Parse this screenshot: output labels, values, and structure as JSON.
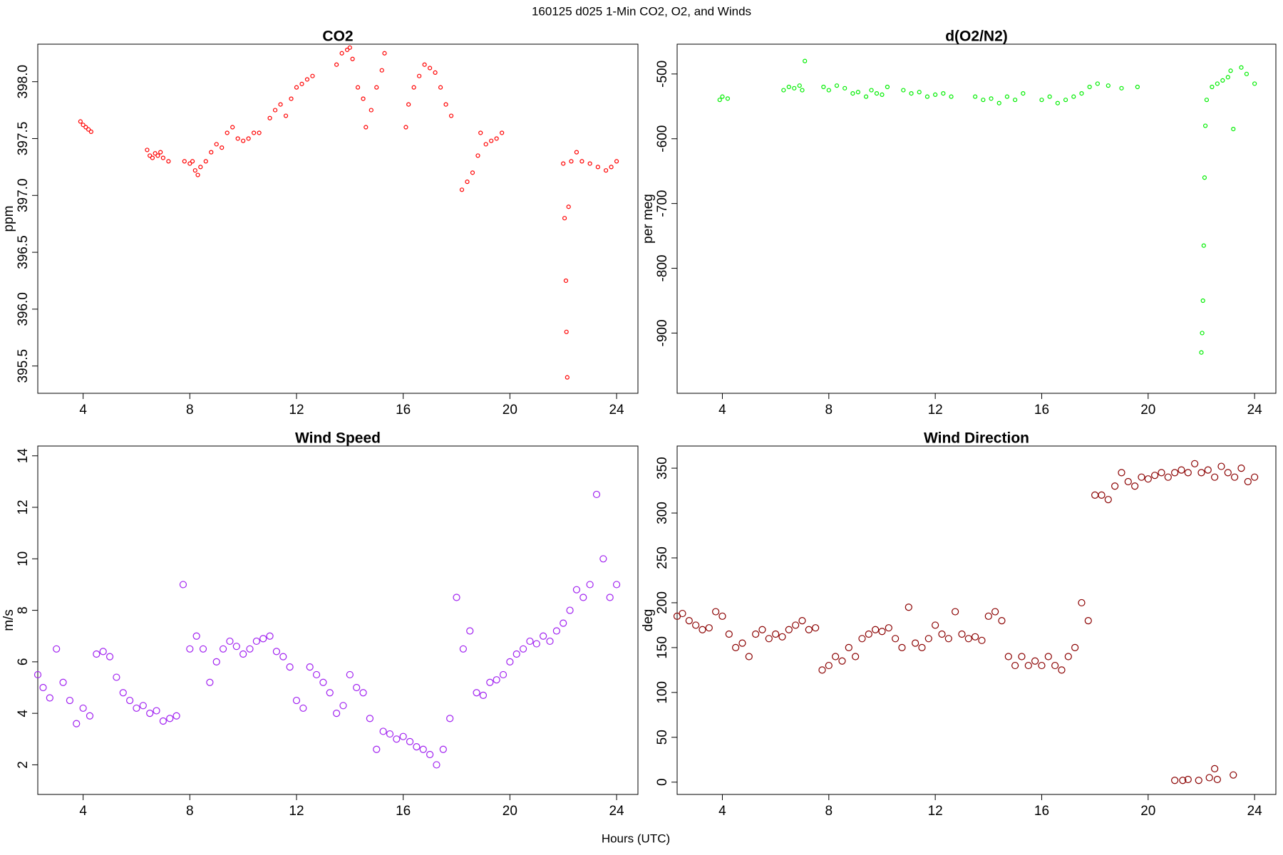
{
  "title": "160125   d025   1-Min CO2, O2, and Winds",
  "xlabel": "Hours (UTC)",
  "chart_data": [
    {
      "type": "scatter",
      "title": "CO2",
      "ylabel": "ppm",
      "color": "#ff0000",
      "xlim": [
        2.3,
        24.8
      ],
      "xticks": [
        4,
        8,
        12,
        16,
        20,
        24
      ],
      "ylim": [
        395.26,
        398.33
      ],
      "yticks": [
        395.5,
        {
          "value": 396,
          "label": "396.0"
        },
        396.5,
        {
          "value": 397,
          "label": "397.0"
        },
        397.5,
        {
          "value": 398,
          "label": "398.0"
        }
      ],
      "x": [
        3.9,
        4.0,
        4.1,
        4.2,
        4.3,
        6.4,
        6.5,
        6.6,
        6.7,
        6.8,
        6.9,
        7.0,
        7.2,
        7.8,
        8.0,
        8.1,
        8.2,
        8.3,
        8.4,
        8.6,
        8.8,
        9.0,
        9.2,
        9.4,
        9.6,
        9.8,
        10.0,
        10.2,
        10.4,
        10.6,
        11.0,
        11.2,
        11.4,
        11.6,
        11.8,
        12.0,
        12.2,
        12.4,
        12.6,
        13.5,
        13.7,
        13.9,
        14.0,
        14.1,
        14.3,
        14.5,
        14.6,
        14.8,
        15.0,
        15.2,
        15.3,
        16.1,
        16.2,
        16.4,
        16.6,
        16.8,
        17.0,
        17.2,
        17.4,
        17.6,
        17.8,
        18.2,
        18.4,
        18.6,
        18.8,
        18.9,
        19.1,
        19.3,
        19.5,
        19.7,
        22.0,
        22.05,
        22.1,
        22.12,
        22.15,
        22.2,
        22.3,
        22.5,
        22.7,
        23.0,
        23.3,
        23.6,
        23.8,
        24.0
      ],
      "values": [
        397.65,
        397.62,
        397.6,
        397.58,
        397.56,
        397.4,
        397.35,
        397.33,
        397.37,
        397.35,
        397.38,
        397.33,
        397.3,
        397.3,
        397.28,
        397.3,
        397.22,
        397.18,
        397.25,
        397.3,
        397.38,
        397.45,
        397.42,
        397.55,
        397.6,
        397.5,
        397.48,
        397.5,
        397.55,
        397.55,
        397.68,
        397.75,
        397.8,
        397.7,
        397.85,
        397.95,
        397.98,
        398.02,
        398.05,
        398.15,
        398.25,
        398.28,
        398.3,
        398.2,
        397.95,
        397.85,
        397.6,
        397.75,
        397.95,
        398.1,
        398.25,
        397.6,
        397.8,
        397.95,
        398.05,
        398.15,
        398.12,
        398.08,
        397.95,
        397.8,
        397.7,
        397.05,
        397.12,
        397.2,
        397.35,
        397.55,
        397.45,
        397.48,
        397.5,
        397.55,
        397.28,
        396.8,
        396.25,
        395.8,
        395.4,
        396.9,
        397.3,
        397.38,
        397.3,
        397.28,
        397.25,
        397.22,
        397.25,
        397.3
      ]
    },
    {
      "type": "scatter",
      "title": "d(O2/N2)",
      "ylabel": "per meg",
      "color": "#00ee00",
      "xlim": [
        2.3,
        24.8
      ],
      "xticks": [
        4,
        8,
        12,
        16,
        20,
        24
      ],
      "ylim": [
        -993,
        -454
      ],
      "yticks": [
        -900,
        -800,
        -700,
        -600,
        -500
      ],
      "x": [
        3.9,
        4.0,
        4.2,
        6.3,
        6.5,
        6.7,
        6.9,
        7.0,
        7.1,
        7.8,
        8.0,
        8.3,
        8.6,
        8.9,
        9.1,
        9.4,
        9.6,
        9.8,
        10.0,
        10.2,
        10.8,
        11.1,
        11.4,
        11.7,
        12.0,
        12.3,
        12.6,
        13.5,
        13.8,
        14.1,
        14.4,
        14.7,
        15.0,
        15.3,
        16.0,
        16.3,
        16.6,
        16.9,
        17.2,
        17.5,
        17.8,
        18.1,
        18.5,
        19.0,
        19.6,
        22.0,
        22.03,
        22.06,
        22.09,
        22.12,
        22.15,
        22.2,
        22.4,
        22.6,
        22.8,
        23.0,
        23.1,
        23.2,
        23.5,
        23.7,
        24.0
      ],
      "values": [
        -540,
        -535,
        -538,
        -525,
        -520,
        -522,
        -518,
        -525,
        -480,
        -520,
        -525,
        -518,
        -522,
        -530,
        -528,
        -535,
        -525,
        -530,
        -532,
        -520,
        -525,
        -530,
        -528,
        -535,
        -532,
        -530,
        -535,
        -535,
        -540,
        -538,
        -545,
        -535,
        -540,
        -530,
        -540,
        -535,
        -545,
        -540,
        -535,
        -530,
        -520,
        -515,
        -518,
        -522,
        -520,
        -930,
        -900,
        -850,
        -765,
        -660,
        -580,
        -540,
        -520,
        -515,
        -510,
        -505,
        -495,
        -585,
        -490,
        -500,
        -515
      ]
    },
    {
      "type": "scatter",
      "title": "Wind Speed",
      "ylabel": "m/s",
      "color": "#a020f0",
      "xlim": [
        2.3,
        24.8
      ],
      "xticks": [
        4,
        8,
        12,
        16,
        20,
        24
      ],
      "ylim": [
        0.85,
        14.38
      ],
      "yticks": [
        2,
        4,
        6,
        8,
        10,
        12,
        14
      ],
      "x": [
        2.3,
        2.5,
        2.75,
        3.0,
        3.25,
        3.5,
        3.75,
        4.0,
        4.25,
        4.5,
        4.75,
        5.0,
        5.25,
        5.5,
        5.75,
        6.0,
        6.25,
        6.5,
        6.75,
        7.0,
        7.25,
        7.5,
        7.75,
        8.0,
        8.25,
        8.5,
        8.75,
        9.0,
        9.25,
        9.5,
        9.75,
        10.0,
        10.25,
        10.5,
        10.75,
        11.0,
        11.25,
        11.5,
        11.75,
        12.0,
        12.25,
        12.5,
        12.75,
        13.0,
        13.25,
        13.5,
        13.75,
        14.0,
        14.25,
        14.5,
        14.75,
        15.0,
        15.25,
        15.5,
        15.75,
        16.0,
        16.25,
        16.5,
        16.75,
        17.0,
        17.25,
        17.5,
        17.75,
        18.0,
        18.25,
        18.5,
        18.75,
        19.0,
        19.25,
        19.5,
        19.75,
        20.0,
        20.25,
        20.5,
        20.75,
        21.0,
        21.25,
        21.5,
        21.75,
        22.0,
        22.25,
        22.5,
        22.75,
        23.0,
        23.25,
        23.5,
        23.75,
        24.0
      ],
      "values": [
        5.5,
        5.0,
        4.6,
        6.5,
        5.2,
        4.5,
        3.6,
        4.2,
        3.9,
        6.3,
        6.4,
        6.2,
        5.4,
        4.8,
        4.5,
        4.2,
        4.3,
        4.0,
        4.1,
        3.7,
        3.8,
        3.9,
        9.0,
        6.5,
        7.0,
        6.5,
        5.2,
        6.0,
        6.5,
        6.8,
        6.6,
        6.3,
        6.5,
        6.8,
        6.9,
        7.0,
        6.4,
        6.2,
        5.8,
        4.5,
        4.2,
        5.8,
        5.5,
        5.2,
        4.8,
        4.0,
        4.3,
        5.5,
        5.0,
        4.8,
        3.8,
        2.6,
        3.3,
        3.2,
        3.0,
        3.1,
        2.9,
        2.7,
        2.6,
        2.4,
        2.0,
        2.6,
        3.8,
        8.5,
        6.5,
        7.2,
        4.8,
        4.7,
        5.2,
        5.3,
        5.5,
        6.0,
        6.3,
        6.5,
        6.8,
        6.7,
        7.0,
        6.8,
        7.2,
        7.5,
        8.0,
        8.8,
        8.5,
        9.0,
        12.5,
        10.0,
        8.5,
        9.0
      ]
    },
    {
      "type": "scatter",
      "title": "Wind Direction",
      "ylabel": "deg",
      "color": "#8b0000",
      "xlim": [
        2.3,
        24.8
      ],
      "xticks": [
        4,
        8,
        12,
        16,
        20,
        24
      ],
      "ylim": [
        -13.7,
        374.7
      ],
      "yticks": [
        0,
        50,
        100,
        150,
        200,
        250,
        300,
        350
      ],
      "x": [
        2.3,
        2.5,
        2.75,
        3.0,
        3.25,
        3.5,
        3.75,
        4.0,
        4.25,
        4.5,
        4.75,
        5.0,
        5.25,
        5.5,
        5.75,
        6.0,
        6.25,
        6.5,
        6.75,
        7.0,
        7.25,
        7.5,
        7.75,
        8.0,
        8.25,
        8.5,
        8.75,
        9.0,
        9.25,
        9.5,
        9.75,
        10.0,
        10.25,
        10.5,
        10.75,
        11.0,
        11.25,
        11.5,
        11.75,
        12.0,
        12.25,
        12.5,
        12.75,
        13.0,
        13.25,
        13.5,
        13.75,
        14.0,
        14.25,
        14.5,
        14.75,
        15.0,
        15.25,
        15.5,
        15.75,
        16.0,
        16.25,
        16.5,
        16.75,
        17.0,
        17.25,
        17.5,
        17.75,
        18.0,
        18.25,
        18.5,
        18.75,
        19.0,
        19.25,
        19.5,
        19.75,
        20.0,
        20.25,
        20.5,
        20.75,
        21.0,
        21.25,
        21.5,
        21.75,
        22.0,
        22.25,
        22.5,
        22.75,
        23.0,
        23.25,
        23.5,
        23.75,
        24.0,
        21.0,
        21.3,
        21.5,
        21.9,
        22.3,
        22.5,
        22.6,
        23.2
      ],
      "values": [
        185,
        188,
        180,
        175,
        170,
        172,
        190,
        185,
        165,
        150,
        155,
        140,
        165,
        170,
        160,
        165,
        162,
        170,
        175,
        180,
        170,
        172,
        125,
        130,
        140,
        135,
        150,
        140,
        160,
        165,
        170,
        168,
        172,
        160,
        150,
        195,
        155,
        150,
        160,
        175,
        165,
        160,
        190,
        165,
        160,
        162,
        158,
        185,
        190,
        180,
        140,
        130,
        140,
        130,
        135,
        130,
        140,
        130,
        125,
        140,
        150,
        200,
        180,
        320,
        320,
        315,
        330,
        345,
        335,
        330,
        340,
        338,
        342,
        345,
        340,
        345,
        348,
        345,
        355,
        345,
        348,
        340,
        352,
        345,
        340,
        350,
        335,
        340,
        2,
        2,
        3,
        2,
        5,
        15,
        3,
        8
      ]
    }
  ]
}
